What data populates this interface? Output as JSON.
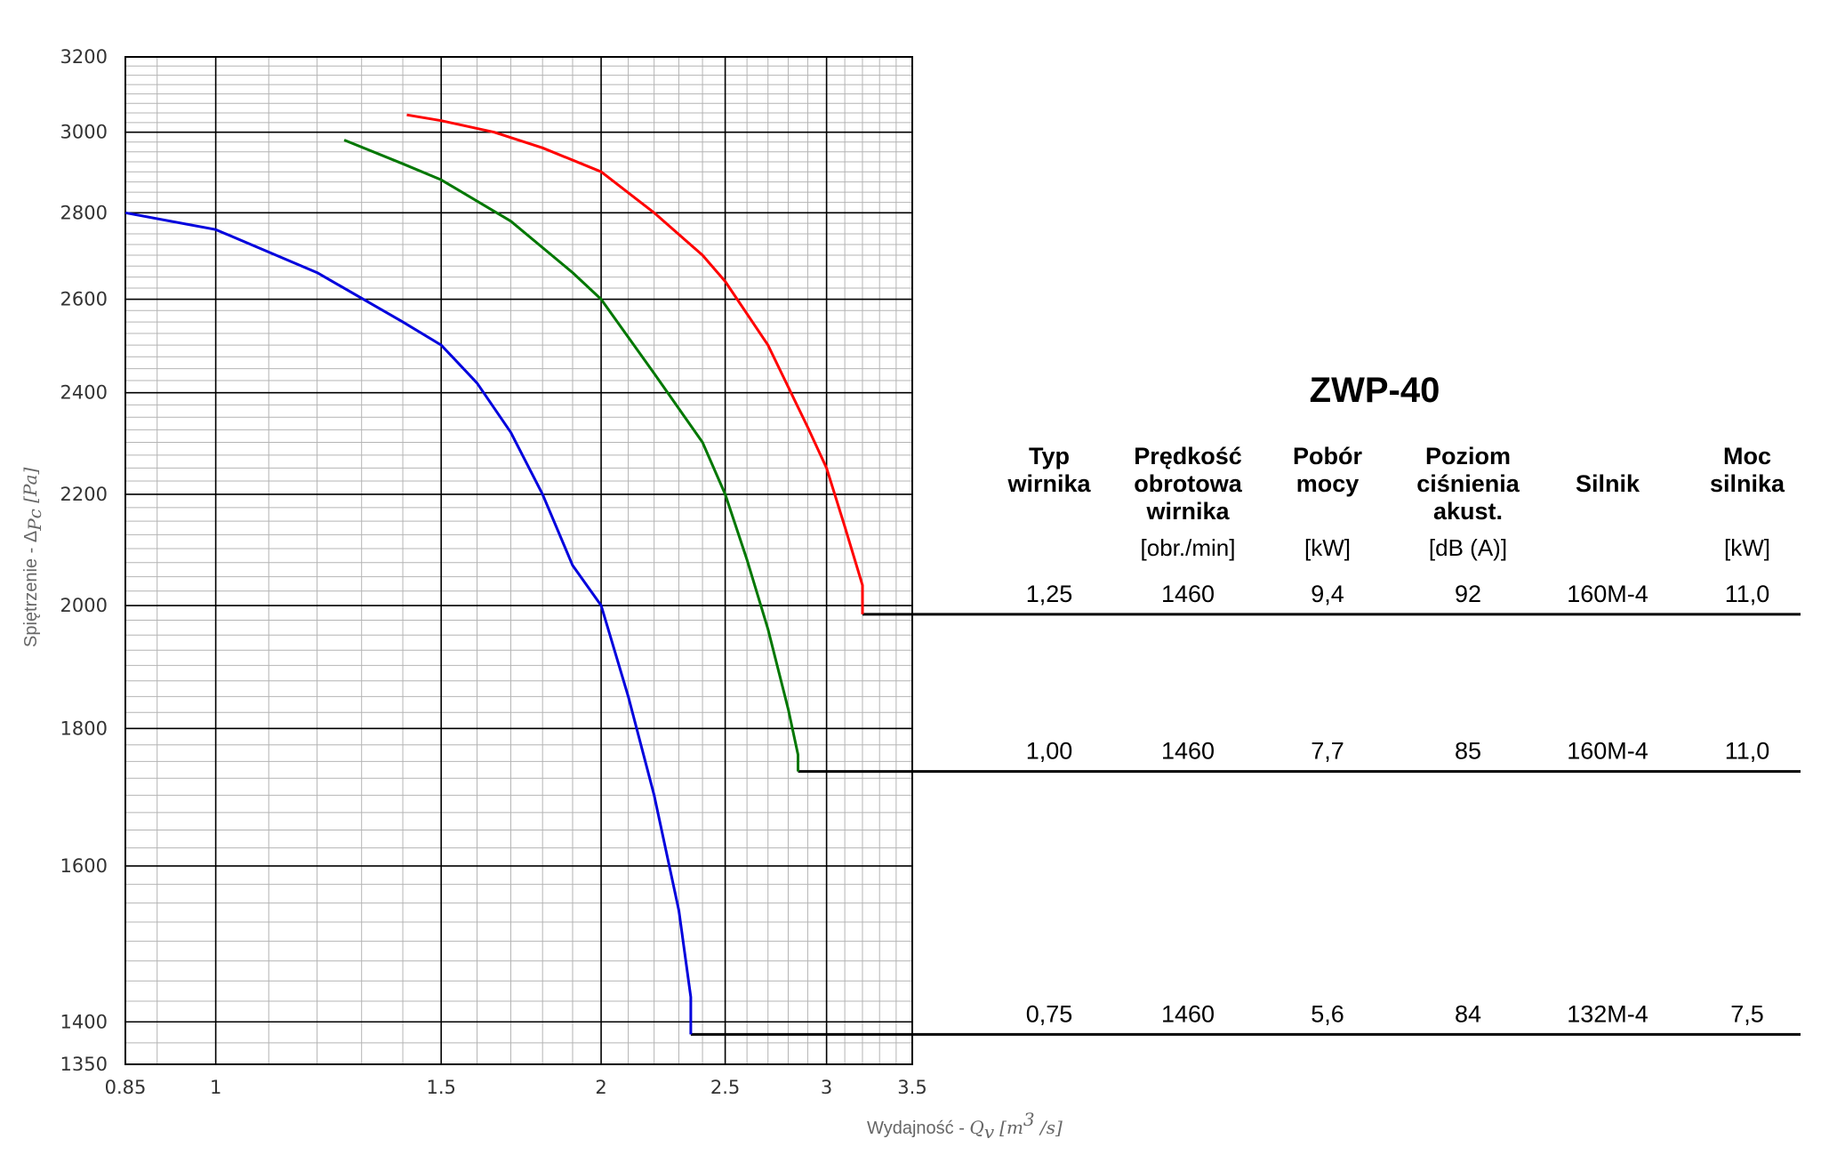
{
  "chart_data": {
    "type": "line",
    "title": "ZWP-40",
    "xlabel": "Wydajność - ",
    "xlabel_math": "Q",
    "xlabel_sub": "v",
    "xlabel_unit": "[m",
    "xlabel_unit_exp": "3",
    "xlabel_unit_tail": " /s]",
    "ylabel": "Spiętrzenie - Δ",
    "ylabel_math_sub": "Pc",
    "ylabel_unit": " [Pa]",
    "x_scale": "log",
    "y_scale": "log",
    "xlim": [
      0.85,
      3.5
    ],
    "ylim": [
      1350,
      3200
    ],
    "x_ticks": [
      {
        "value": 0.85,
        "label": "0.85"
      },
      {
        "value": 1,
        "label": "1"
      },
      {
        "value": 1.5,
        "label": "1.5"
      },
      {
        "value": 2,
        "label": "2"
      },
      {
        "value": 2.5,
        "label": "2.5"
      },
      {
        "value": 3,
        "label": "3"
      },
      {
        "value": 3.5,
        "label": "3.5"
      }
    ],
    "y_ticks": [
      {
        "value": 1350,
        "label": "1350"
      },
      {
        "value": 1400,
        "label": "1400"
      },
      {
        "value": 1600,
        "label": "1600"
      },
      {
        "value": 1800,
        "label": "1800"
      },
      {
        "value": 2000,
        "label": "2000"
      },
      {
        "value": 2200,
        "label": "2200"
      },
      {
        "value": 2400,
        "label": "2400"
      },
      {
        "value": 2600,
        "label": "2600"
      },
      {
        "value": 2800,
        "label": "2800"
      },
      {
        "value": 3000,
        "label": "3000"
      },
      {
        "value": 3200,
        "label": "3200"
      }
    ],
    "grid": true,
    "series": [
      {
        "color": "#ff0000",
        "x": [
          1.41,
          1.5,
          1.65,
          1.8,
          2.0,
          2.2,
          2.4,
          2.5,
          2.7,
          2.9,
          3.0,
          3.1,
          3.2
        ],
        "y": [
          3045,
          3030,
          3000,
          2960,
          2900,
          2800,
          2700,
          2640,
          2500,
          2330,
          2250,
          2140,
          2035
        ],
        "end_y": 1985
      },
      {
        "color": "#007700",
        "x": [
          1.26,
          1.4,
          1.5,
          1.7,
          1.9,
          2.0,
          2.2,
          2.4,
          2.5,
          2.6,
          2.7,
          2.8,
          2.85
        ],
        "y": [
          2980,
          2920,
          2880,
          2780,
          2660,
          2600,
          2440,
          2300,
          2200,
          2080,
          1960,
          1830,
          1760
        ],
        "end_y": 1735
      },
      {
        "color": "#0000dd",
        "x": [
          0.85,
          1.0,
          1.2,
          1.4,
          1.5,
          1.6,
          1.7,
          1.8,
          1.9,
          2.0,
          2.1,
          2.2,
          2.3,
          2.35
        ],
        "y": [
          2800,
          2760,
          2660,
          2550,
          2500,
          2420,
          2320,
          2200,
          2070,
          2000,
          1850,
          1700,
          1540,
          1430
        ],
        "end_y": 1385
      }
    ]
  },
  "table": {
    "headers": [
      [
        "Typ",
        "wirnika"
      ],
      [
        "Prędkość",
        "obrotowa",
        "wirnika"
      ],
      [
        "Pobór",
        "mocy"
      ],
      [
        "Poziom",
        "ciśnienia",
        "akust."
      ],
      [
        "Silnik"
      ],
      [
        "Moc",
        "silnika"
      ]
    ],
    "units": [
      "",
      "[obr./min]",
      "[kW]",
      "[dB (A)]",
      "",
      "[kW]"
    ],
    "rows": [
      {
        "y": 1985,
        "cells": [
          "1,25",
          "1460",
          "9,4",
          "92",
          "160M-4",
          "11,0"
        ]
      },
      {
        "y": 1735,
        "cells": [
          "1,00",
          "1460",
          "7,7",
          "85",
          "160M-4",
          "11,0"
        ]
      },
      {
        "y": 1385,
        "cells": [
          "0,75",
          "1460",
          "5,6",
          "84",
          "132M-4",
          "7,5"
        ]
      }
    ]
  }
}
